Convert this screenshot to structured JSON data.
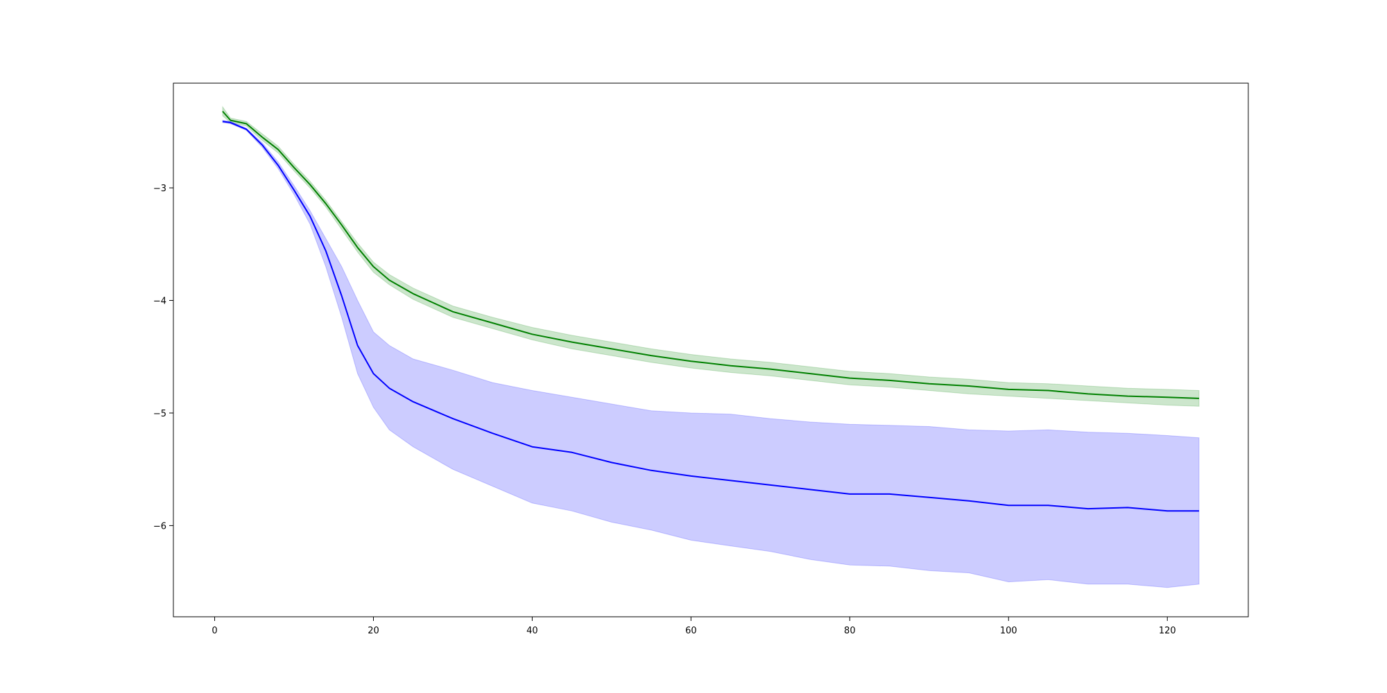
{
  "chart_data": {
    "type": "line",
    "title": "",
    "xlabel": "",
    "ylabel": "",
    "xlim": [
      -5.2,
      130.2
    ],
    "ylim": [
      -6.81,
      -2.07
    ],
    "grid": false,
    "legend": "none",
    "x_ticks": [
      0,
      20,
      40,
      60,
      80,
      100,
      120
    ],
    "y_ticks": [
      -3,
      -4,
      -5,
      -6
    ],
    "x_tick_labels": [
      "0",
      "20",
      "40",
      "60",
      "80",
      "100",
      "120"
    ],
    "y_tick_labels": [
      "−3",
      "−4",
      "−5",
      "−6"
    ],
    "series": [
      {
        "color": "#008000",
        "band_color": "#008000",
        "band_opacity": 0.2,
        "points": [
          {
            "x": 1,
            "mean": -2.32,
            "lower": -2.36,
            "upper": -2.28
          },
          {
            "x": 2,
            "mean": -2.4,
            "lower": -2.42,
            "upper": -2.38
          },
          {
            "x": 4,
            "mean": -2.43,
            "lower": -2.45,
            "upper": -2.41
          },
          {
            "x": 6,
            "mean": -2.55,
            "lower": -2.58,
            "upper": -2.52
          },
          {
            "x": 8,
            "mean": -2.66,
            "lower": -2.69,
            "upper": -2.63
          },
          {
            "x": 10,
            "mean": -2.82,
            "lower": -2.85,
            "upper": -2.79
          },
          {
            "x": 12,
            "mean": -2.97,
            "lower": -3.0,
            "upper": -2.94
          },
          {
            "x": 14,
            "mean": -3.14,
            "lower": -3.17,
            "upper": -3.11
          },
          {
            "x": 16,
            "mean": -3.33,
            "lower": -3.37,
            "upper": -3.3
          },
          {
            "x": 18,
            "mean": -3.53,
            "lower": -3.57,
            "upper": -3.49
          },
          {
            "x": 20,
            "mean": -3.7,
            "lower": -3.75,
            "upper": -3.66
          },
          {
            "x": 22,
            "mean": -3.82,
            "lower": -3.86,
            "upper": -3.77
          },
          {
            "x": 25,
            "mean": -3.94,
            "lower": -3.99,
            "upper": -3.89
          },
          {
            "x": 30,
            "mean": -4.1,
            "lower": -4.15,
            "upper": -4.05
          },
          {
            "x": 35,
            "mean": -4.2,
            "lower": -4.25,
            "upper": -4.15
          },
          {
            "x": 40,
            "mean": -4.3,
            "lower": -4.35,
            "upper": -4.24
          },
          {
            "x": 45,
            "mean": -4.37,
            "lower": -4.43,
            "upper": -4.31
          },
          {
            "x": 50,
            "mean": -4.43,
            "lower": -4.49,
            "upper": -4.37
          },
          {
            "x": 55,
            "mean": -4.49,
            "lower": -4.55,
            "upper": -4.43
          },
          {
            "x": 60,
            "mean": -4.54,
            "lower": -4.6,
            "upper": -4.48
          },
          {
            "x": 65,
            "mean": -4.58,
            "lower": -4.64,
            "upper": -4.52
          },
          {
            "x": 70,
            "mean": -4.61,
            "lower": -4.67,
            "upper": -4.55
          },
          {
            "x": 75,
            "mean": -4.65,
            "lower": -4.71,
            "upper": -4.59
          },
          {
            "x": 80,
            "mean": -4.69,
            "lower": -4.75,
            "upper": -4.63
          },
          {
            "x": 85,
            "mean": -4.71,
            "lower": -4.77,
            "upper": -4.65
          },
          {
            "x": 90,
            "mean": -4.74,
            "lower": -4.8,
            "upper": -4.68
          },
          {
            "x": 95,
            "mean": -4.76,
            "lower": -4.83,
            "upper": -4.7
          },
          {
            "x": 100,
            "mean": -4.79,
            "lower": -4.85,
            "upper": -4.73
          },
          {
            "x": 105,
            "mean": -4.8,
            "lower": -4.87,
            "upper": -4.74
          },
          {
            "x": 110,
            "mean": -4.83,
            "lower": -4.89,
            "upper": -4.76
          },
          {
            "x": 115,
            "mean": -4.85,
            "lower": -4.91,
            "upper": -4.78
          },
          {
            "x": 120,
            "mean": -4.86,
            "lower": -4.93,
            "upper": -4.79
          },
          {
            "x": 124,
            "mean": -4.87,
            "lower": -4.94,
            "upper": -4.8
          }
        ]
      },
      {
        "color": "#0000ff",
        "band_color": "#0000ff",
        "band_opacity": 0.2,
        "points": [
          {
            "x": 1,
            "mean": -2.41,
            "lower": -2.42,
            "upper": -2.4
          },
          {
            "x": 2,
            "mean": -2.42,
            "lower": -2.43,
            "upper": -2.41
          },
          {
            "x": 4,
            "mean": -2.48,
            "lower": -2.49,
            "upper": -2.47
          },
          {
            "x": 6,
            "mean": -2.62,
            "lower": -2.64,
            "upper": -2.6
          },
          {
            "x": 8,
            "mean": -2.8,
            "lower": -2.83,
            "upper": -2.77
          },
          {
            "x": 10,
            "mean": -3.02,
            "lower": -3.06,
            "upper": -2.98
          },
          {
            "x": 12,
            "mean": -3.25,
            "lower": -3.32,
            "upper": -3.2
          },
          {
            "x": 14,
            "mean": -3.56,
            "lower": -3.7,
            "upper": -3.45
          },
          {
            "x": 16,
            "mean": -3.96,
            "lower": -4.15,
            "upper": -3.7
          },
          {
            "x": 18,
            "mean": -4.4,
            "lower": -4.65,
            "upper": -4.0
          },
          {
            "x": 20,
            "mean": -4.65,
            "lower": -4.95,
            "upper": -4.28
          },
          {
            "x": 22,
            "mean": -4.78,
            "lower": -5.15,
            "upper": -4.4
          },
          {
            "x": 25,
            "mean": -4.9,
            "lower": -5.3,
            "upper": -4.52
          },
          {
            "x": 30,
            "mean": -5.05,
            "lower": -5.5,
            "upper": -4.62
          },
          {
            "x": 35,
            "mean": -5.18,
            "lower": -5.65,
            "upper": -4.73
          },
          {
            "x": 40,
            "mean": -5.3,
            "lower": -5.8,
            "upper": -4.8
          },
          {
            "x": 45,
            "mean": -5.35,
            "lower": -5.87,
            "upper": -4.86
          },
          {
            "x": 50,
            "mean": -5.44,
            "lower": -5.97,
            "upper": -4.92
          },
          {
            "x": 55,
            "mean": -5.51,
            "lower": -6.04,
            "upper": -4.98
          },
          {
            "x": 60,
            "mean": -5.56,
            "lower": -6.13,
            "upper": -5.0
          },
          {
            "x": 65,
            "mean": -5.6,
            "lower": -6.18,
            "upper": -5.01
          },
          {
            "x": 70,
            "mean": -5.64,
            "lower": -6.23,
            "upper": -5.05
          },
          {
            "x": 75,
            "mean": -5.68,
            "lower": -6.3,
            "upper": -5.08
          },
          {
            "x": 80,
            "mean": -5.72,
            "lower": -6.35,
            "upper": -5.1
          },
          {
            "x": 85,
            "mean": -5.72,
            "lower": -6.36,
            "upper": -5.11
          },
          {
            "x": 90,
            "mean": -5.75,
            "lower": -6.4,
            "upper": -5.12
          },
          {
            "x": 95,
            "mean": -5.78,
            "lower": -6.42,
            "upper": -5.15
          },
          {
            "x": 100,
            "mean": -5.82,
            "lower": -6.5,
            "upper": -5.16
          },
          {
            "x": 105,
            "mean": -5.82,
            "lower": -6.48,
            "upper": -5.15
          },
          {
            "x": 110,
            "mean": -5.85,
            "lower": -6.52,
            "upper": -5.17
          },
          {
            "x": 115,
            "mean": -5.84,
            "lower": -6.52,
            "upper": -5.18
          },
          {
            "x": 120,
            "mean": -5.87,
            "lower": -6.55,
            "upper": -5.2
          },
          {
            "x": 124,
            "mean": -5.87,
            "lower": -6.52,
            "upper": -5.22
          }
        ]
      }
    ]
  }
}
